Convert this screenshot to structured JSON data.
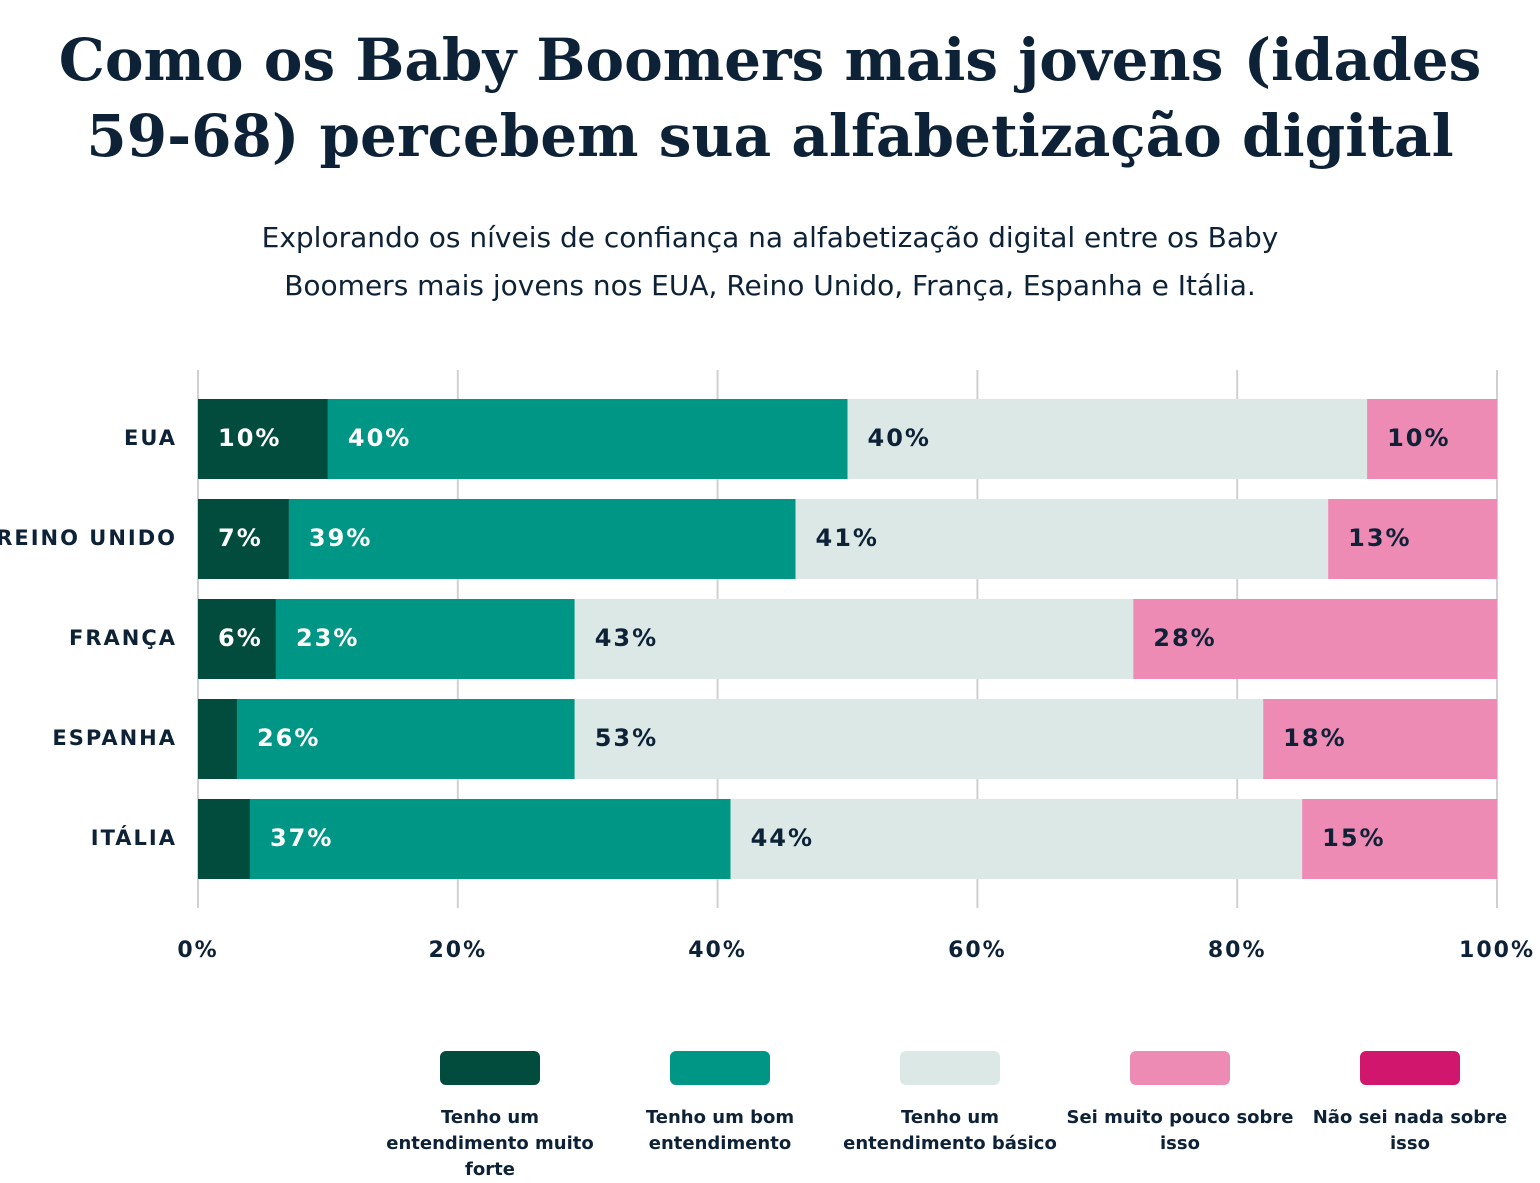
{
  "chart_data": {
    "type": "stacked_bar_horizontal",
    "title": "Como os Baby Boomers mais jovens (idades 59-68) percebem sua alfabetização digital",
    "subtitle": "Explorando os níveis de confiança na alfabetização digital entre os Baby Boomers mais jovens nos EUA, Reino Unido, França, Espanha e Itália.",
    "categories": [
      "EUA",
      "REINO UNIDO",
      "FRANÇA",
      "ESPANHA",
      "ITÁLIA"
    ],
    "series": [
      {
        "name": "Tenho um entendimento muito forte",
        "color": "#024c3e",
        "values": [
          10,
          7,
          6,
          3,
          4
        ],
        "value_labels": [
          "10%",
          "7%",
          "6%",
          null,
          null
        ]
      },
      {
        "name": "Tenho um bom entendimento",
        "color": "#009685",
        "values": [
          40,
          39,
          23,
          26,
          37
        ],
        "value_labels": [
          "40%",
          "39%",
          "23%",
          "26%",
          "37%"
        ]
      },
      {
        "name": "Tenho um entendimento básico",
        "color": "#dbe8e6",
        "values": [
          40,
          41,
          43,
          53,
          44
        ],
        "value_labels": [
          "40%",
          "41%",
          "43%",
          "53%",
          "44%"
        ]
      },
      {
        "name": "Sei muito pouco sobre isso",
        "color": "#ed8bb5",
        "values": [
          10,
          13,
          28,
          18,
          15
        ],
        "value_labels": [
          "10%",
          "13%",
          "28%",
          "18%",
          "15%"
        ]
      },
      {
        "name": "Não sei nada sobre isso",
        "color": "#d0176d",
        "values": [
          0,
          0,
          0,
          0,
          0
        ],
        "value_labels": [
          null,
          null,
          null,
          null,
          null
        ]
      }
    ],
    "xlim": [
      0,
      100
    ],
    "xticks": [
      {
        "value": 0,
        "label": "0%"
      },
      {
        "value": 20,
        "label": "20%"
      },
      {
        "value": 40,
        "label": "40%"
      },
      {
        "value": 60,
        "label": "60%"
      },
      {
        "value": 80,
        "label": "80%"
      },
      {
        "value": 100,
        "label": "100%"
      }
    ],
    "grid": true,
    "legend": "bottom"
  }
}
